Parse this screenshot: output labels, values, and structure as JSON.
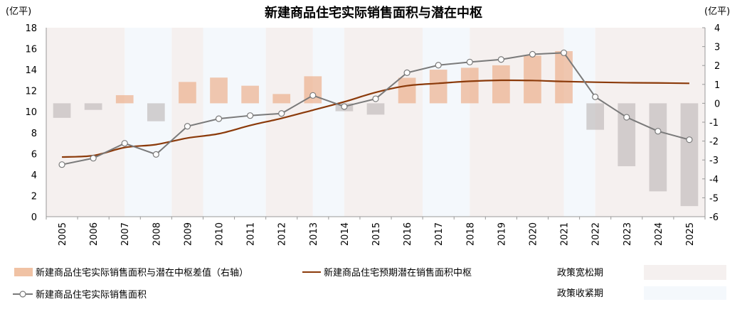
{
  "chart_data": {
    "type": "bar+line",
    "title": "新建商品住宅实际销售面积与潜在中枢",
    "ylabel_left": "(亿平)",
    "ylabel_right": "(亿平)",
    "ylim_left": [
      0,
      18
    ],
    "yticks_left": [
      0,
      2,
      4,
      6,
      8,
      10,
      12,
      14,
      16,
      18
    ],
    "ylim_right": [
      -6,
      4
    ],
    "yticks_right": [
      -6,
      -5,
      -4,
      -3,
      -2,
      -1,
      0,
      1,
      2,
      3,
      4
    ],
    "grid": false,
    "legend_position": "bottom",
    "categories": [
      "2005",
      "2006",
      "2007",
      "2008",
      "2009",
      "2010",
      "2011",
      "2012",
      "2013",
      "2014",
      "2015",
      "2016",
      "2017",
      "2018",
      "2019",
      "2020",
      "2021",
      "2022",
      "2023",
      "2024",
      "2025"
    ],
    "series": [
      {
        "name": "新建商品住宅实际销售面积与潜在中枢差值（右轴）",
        "type": "bar",
        "axis": "right",
        "values": [
          -0.77,
          -0.35,
          0.43,
          -0.95,
          1.13,
          1.36,
          0.93,
          0.49,
          1.43,
          -0.42,
          -0.6,
          1.35,
          1.78,
          1.88,
          2.01,
          2.52,
          2.76,
          -1.4,
          -3.33,
          -4.66,
          -5.44
        ]
      },
      {
        "name": "新建商品住宅预期潜在销售面积中枢",
        "type": "line",
        "axis": "left",
        "color": "#8b3a0a",
        "values": [
          5.68,
          5.82,
          6.59,
          6.87,
          7.49,
          7.9,
          8.69,
          9.37,
          10.15,
          10.94,
          11.84,
          12.47,
          12.7,
          12.9,
          12.99,
          12.97,
          12.88,
          12.81,
          12.76,
          12.74,
          12.7
        ]
      },
      {
        "name": "新建商品住宅实际销售面积",
        "type": "line-marker",
        "axis": "left",
        "color": "#7a7a7a",
        "values": [
          4.96,
          5.57,
          6.99,
          5.93,
          8.61,
          9.33,
          9.63,
          9.83,
          11.55,
          10.49,
          11.23,
          13.71,
          14.43,
          14.73,
          14.97,
          15.47,
          15.61,
          11.41,
          9.47,
          8.14,
          7.33
        ]
      }
    ],
    "policy_periods": [
      {
        "type": "loose",
        "from": "2005",
        "to": "2007"
      },
      {
        "type": "tight",
        "from": "2007",
        "to": "2008/2009"
      },
      {
        "type": "loose",
        "from": "2008/2009",
        "to": "2009/2010"
      },
      {
        "type": "tight",
        "from": "2009/2010",
        "to": "2011/2012"
      },
      {
        "type": "loose",
        "from": "2011/2012",
        "to": "2013"
      },
      {
        "type": "tight",
        "from": "2013",
        "to": "2014"
      },
      {
        "type": "loose",
        "from": "2014",
        "to": "2016/2017"
      },
      {
        "type": "tight",
        "from": "2016/2017",
        "to": "2018"
      },
      {
        "type": "loose",
        "from": "2018",
        "to": "2021"
      },
      {
        "type": "tight",
        "from": "2021",
        "to": "2022"
      },
      {
        "type": "loose",
        "from": "2022",
        "to": "2025"
      }
    ],
    "policy_legend": {
      "loose": "政策宽松期",
      "tight": "政策收紧期"
    },
    "colors": {
      "loose_bg": "#f5f0ef",
      "tight_bg": "#f4f8fc",
      "bar_pos": "#f0c2a4",
      "bar_neg": "#d3cecd",
      "center_line": "#8b3a0a",
      "actual_line": "#7a7a7a"
    }
  }
}
